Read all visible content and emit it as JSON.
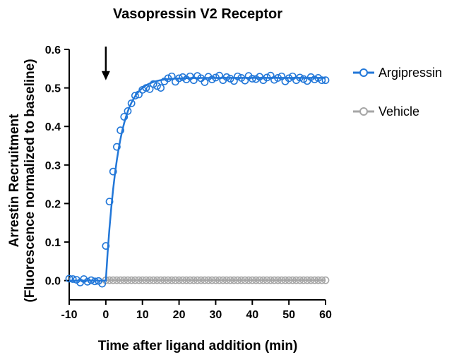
{
  "chart_data": {
    "type": "scatter",
    "title": "Vasopressin V2 Receptor",
    "xlabel": "Time after ligand addition (min)",
    "ylabel": "Arrestin Recruitment",
    "ylabel2": "(Fluorescence normalized to baseline)",
    "xlim": [
      -10,
      60
    ],
    "ylim": [
      -0.05,
      0.6
    ],
    "xticks": [
      -10,
      0,
      10,
      20,
      30,
      40,
      50,
      60
    ],
    "yticks": [
      0.0,
      0.1,
      0.2,
      0.3,
      0.4,
      0.5,
      0.6
    ],
    "xtick_labels": [
      "-10",
      "0",
      "10",
      "20",
      "30",
      "40",
      "50",
      "60"
    ],
    "ytick_labels": [
      "0.0",
      "0.1",
      "0.2",
      "0.3",
      "0.4",
      "0.5",
      "0.6"
    ],
    "grid": false,
    "legend_position": "right",
    "annotation": {
      "type": "arrow",
      "x": 0,
      "y_from": 0.6,
      "y_to": 0.52
    },
    "series": [
      {
        "name": "Argipressin",
        "color": "#2277d8",
        "marker": "open-circle",
        "fit_line": true,
        "x": [
          -10,
          -9,
          -8,
          -7,
          -6,
          -5,
          -4,
          -3,
          -2,
          -1,
          0,
          1,
          2,
          3,
          4,
          5,
          6,
          7,
          8,
          9,
          10,
          11,
          12,
          13,
          14,
          15,
          16,
          17,
          18,
          19,
          20,
          21,
          22,
          23,
          24,
          25,
          26,
          27,
          28,
          29,
          30,
          31,
          32,
          33,
          34,
          35,
          36,
          37,
          38,
          39,
          40,
          41,
          42,
          43,
          44,
          45,
          46,
          47,
          48,
          49,
          50,
          51,
          52,
          53,
          54,
          55,
          56,
          57,
          58,
          59,
          60
        ],
        "y": [
          0.005,
          0.004,
          0.002,
          -0.005,
          0.004,
          -0.003,
          0.001,
          -0.002,
          -0.001,
          -0.008,
          0.09,
          0.205,
          0.283,
          0.347,
          0.39,
          0.425,
          0.44,
          0.46,
          0.48,
          0.483,
          0.495,
          0.5,
          0.497,
          0.51,
          0.505,
          0.5,
          0.517,
          0.525,
          0.53,
          0.516,
          0.525,
          0.528,
          0.522,
          0.53,
          0.52,
          0.531,
          0.525,
          0.515,
          0.529,
          0.522,
          0.527,
          0.532,
          0.52,
          0.528,
          0.524,
          0.518,
          0.53,
          0.526,
          0.519,
          0.531,
          0.524,
          0.523,
          0.529,
          0.52,
          0.527,
          0.532,
          0.521,
          0.526,
          0.53,
          0.517,
          0.525,
          0.53,
          0.52,
          0.527,
          0.523,
          0.518,
          0.528,
          0.522,
          0.526,
          0.52,
          0.52
        ]
      },
      {
        "name": "Vehicle",
        "color": "#a6a6a6",
        "marker": "open-circle",
        "fit_line": true,
        "x": [
          0,
          1,
          2,
          3,
          4,
          5,
          6,
          7,
          8,
          9,
          10,
          11,
          12,
          13,
          14,
          15,
          16,
          17,
          18,
          19,
          20,
          21,
          22,
          23,
          24,
          25,
          26,
          27,
          28,
          29,
          30,
          31,
          32,
          33,
          34,
          35,
          36,
          37,
          38,
          39,
          40,
          41,
          42,
          43,
          44,
          45,
          46,
          47,
          48,
          49,
          50,
          51,
          52,
          53,
          54,
          55,
          56,
          57,
          58,
          59,
          60
        ],
        "y": [
          0.001,
          0.001,
          0.001,
          0.001,
          0.001,
          0.001,
          0.001,
          0.001,
          0.001,
          0.001,
          0.001,
          0.001,
          0.001,
          0.001,
          0.001,
          0.001,
          0.001,
          0.001,
          0.001,
          0.001,
          0.001,
          0.001,
          0.001,
          0.001,
          0.001,
          0.001,
          0.001,
          0.001,
          0.001,
          0.001,
          0.001,
          0.001,
          0.001,
          0.001,
          0.001,
          0.001,
          0.001,
          0.001,
          0.001,
          0.001,
          0.001,
          0.001,
          0.001,
          0.001,
          0.001,
          0.001,
          0.001,
          0.001,
          0.001,
          0.001,
          0.001,
          0.001,
          0.001,
          0.001,
          0.001,
          0.001,
          0.001,
          0.001,
          0.001,
          0.001,
          0.001
        ]
      }
    ]
  }
}
